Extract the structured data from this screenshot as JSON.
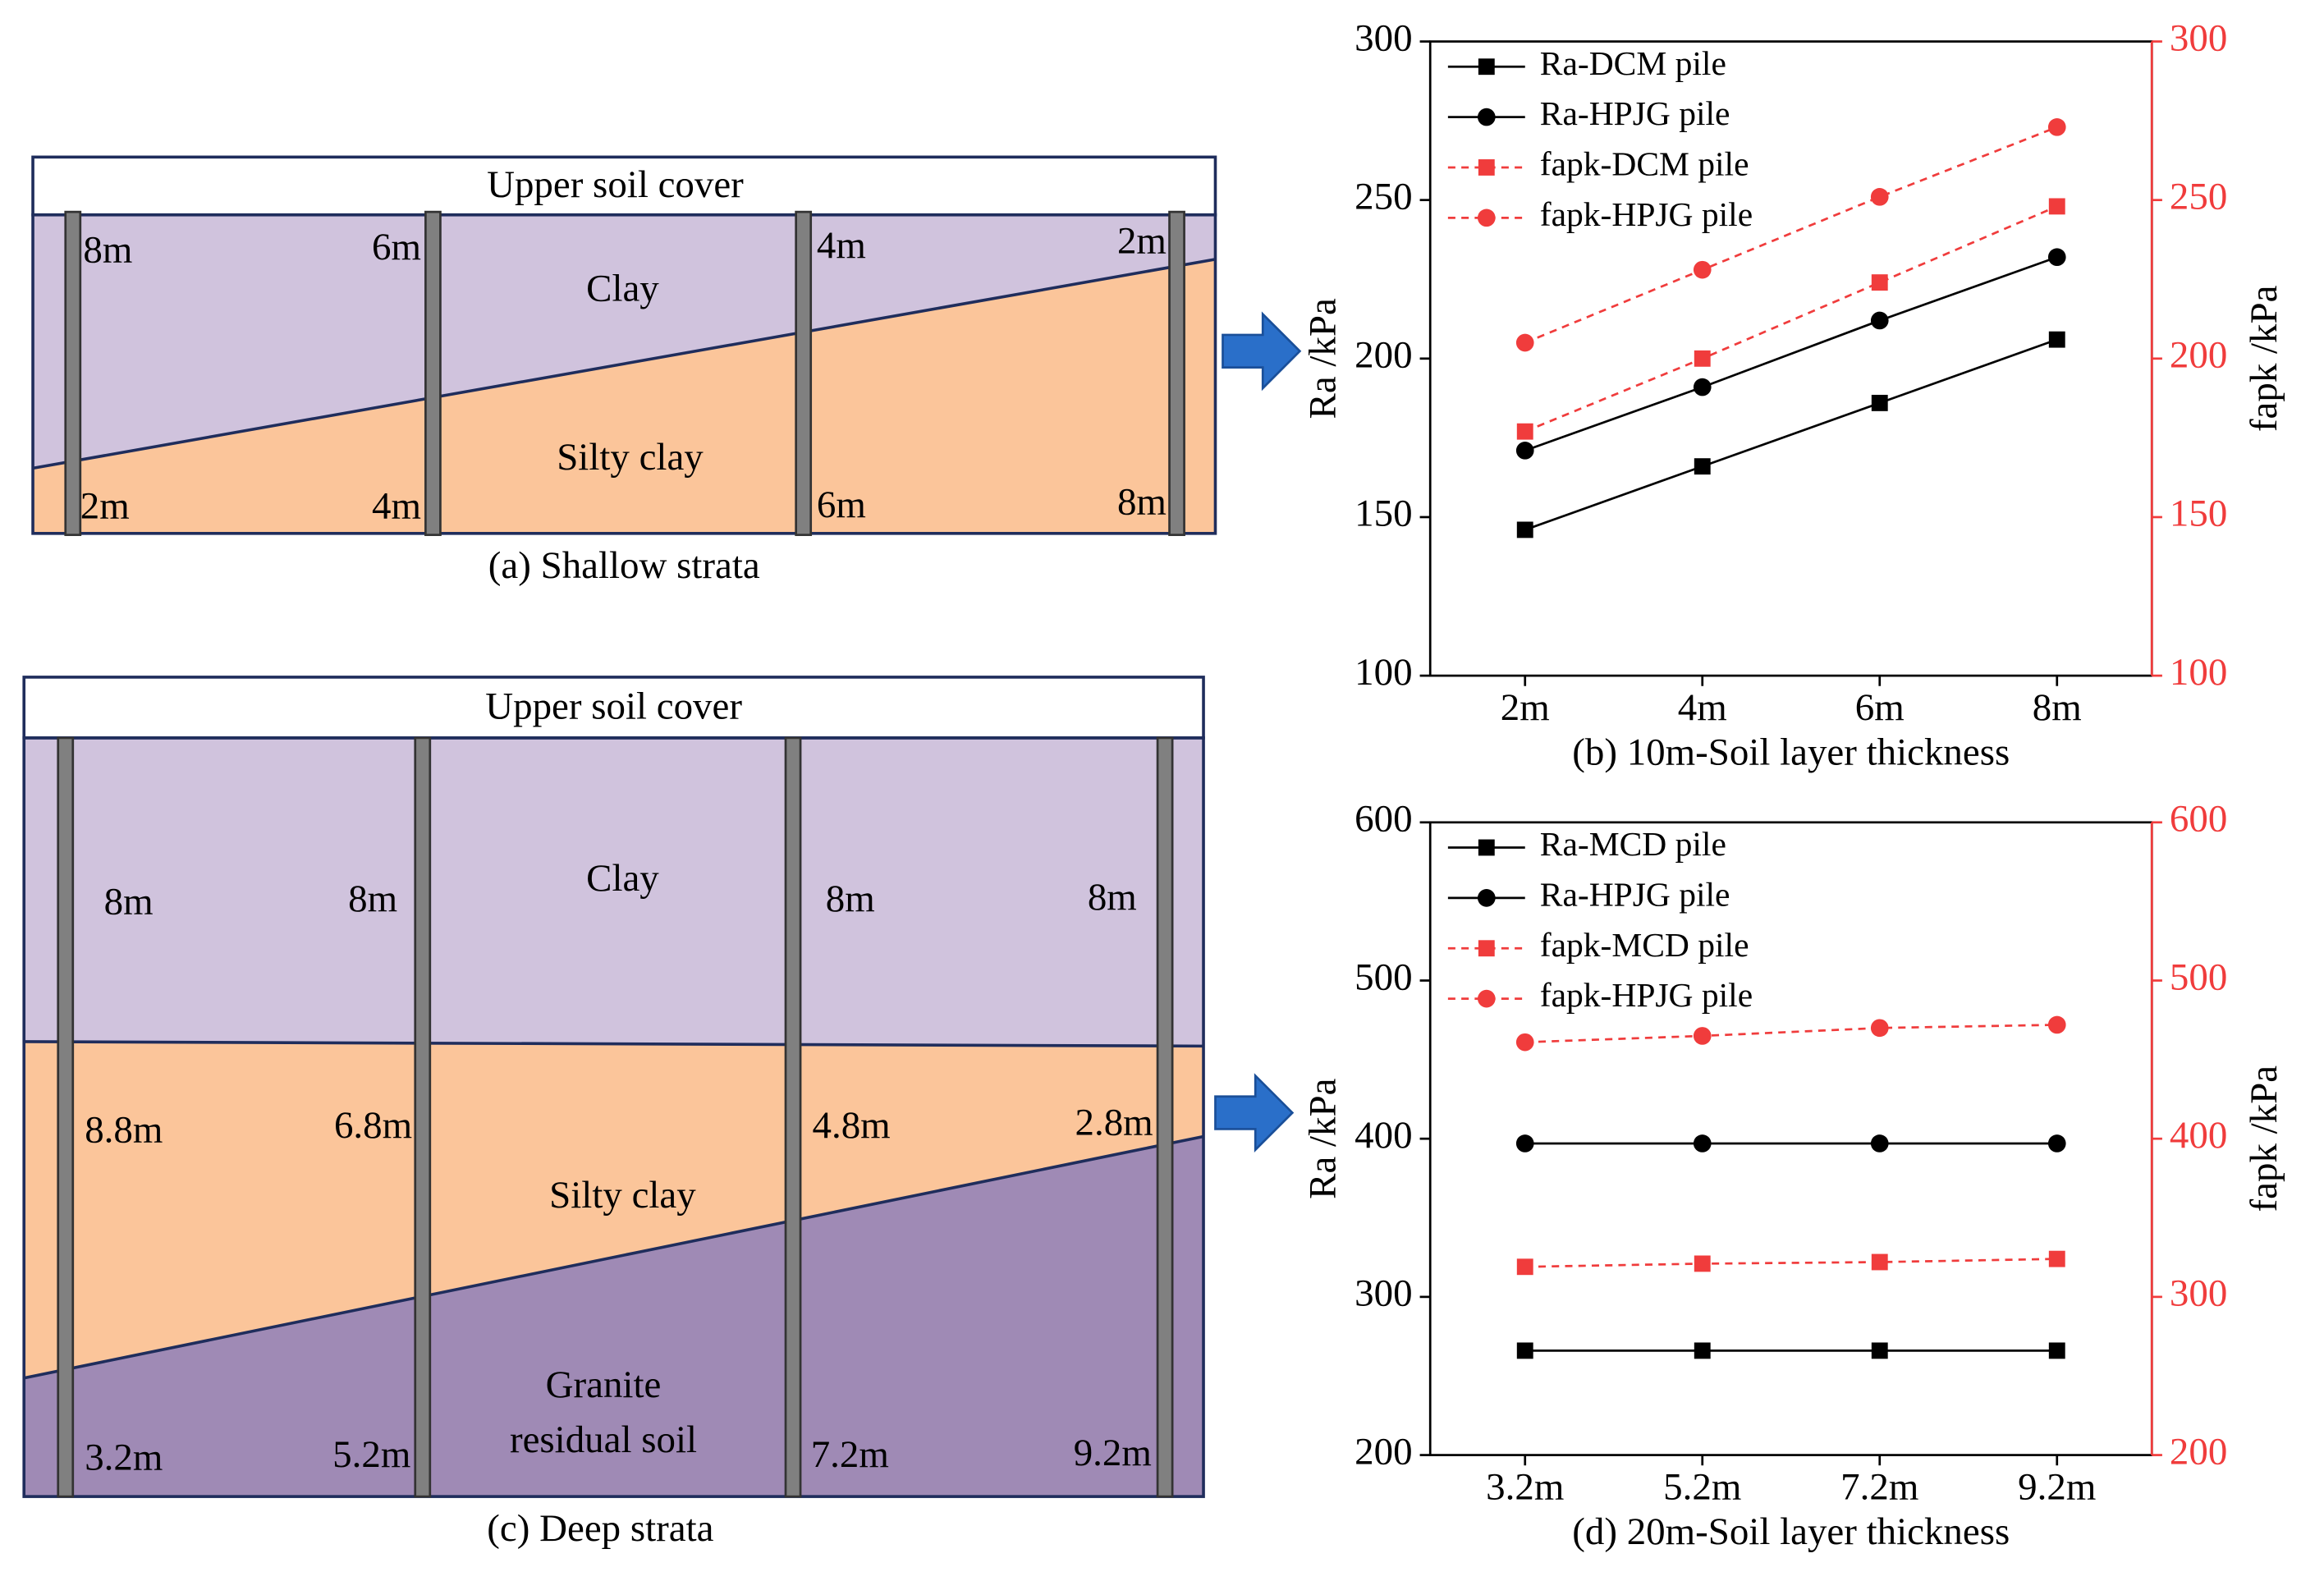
{
  "diagrams": [
    {
      "caption": "(a) Shallow strata",
      "cover": "Upper soil cover",
      "layers": [
        "Clay",
        "Silty clay"
      ],
      "top_labels": [
        "8m",
        "6m",
        "4m",
        "2m"
      ],
      "bottom_labels": [
        "2m",
        "4m",
        "6m",
        "8m"
      ]
    },
    {
      "caption": "(c) Deep strata",
      "cover": "Upper soil cover",
      "layers": [
        "Clay",
        "Silty clay",
        "Granite",
        "residual soil"
      ],
      "top_labels": [
        "8m",
        "8m",
        "8m",
        "8m"
      ],
      "middle_labels": [
        "8.8m",
        "6.8m",
        "4.8m",
        "2.8m"
      ],
      "bottom_labels": [
        "3.2m",
        "5.2m",
        "7.2m",
        "9.2m"
      ]
    }
  ],
  "chart_data": [
    {
      "type": "line",
      "title": "(b) 10m-Soil layer thickness",
      "ylabel": "Ra /kPa",
      "y2label": "fapk /kPa",
      "categories": [
        "2m",
        "4m",
        "6m",
        "8m"
      ],
      "ylim": [
        100,
        300
      ],
      "yticks": [
        100,
        150,
        200,
        250,
        300
      ],
      "y2lim": [
        100,
        300
      ],
      "y2ticks": [
        100,
        150,
        200,
        250,
        300
      ],
      "y2color": "#f03c3c",
      "legend": "upper left",
      "series": [
        {
          "name": "Ra-DCM pile",
          "color": "#000000",
          "marker": "square",
          "linestyle": "solid",
          "values": [
            146,
            166,
            186,
            206
          ]
        },
        {
          "name": "Ra-HPJG pile",
          "color": "#000000",
          "marker": "circle",
          "linestyle": "solid",
          "values": [
            171,
            191,
            212,
            232
          ]
        },
        {
          "name": "fapk-DCM pile",
          "color": "#f03c3c",
          "marker": "square",
          "linestyle": "dashed",
          "axis": "y2",
          "values": [
            177,
            200,
            224,
            248
          ]
        },
        {
          "name": "fapk-HPJG pile",
          "color": "#f03c3c",
          "marker": "circle",
          "linestyle": "dashed",
          "axis": "y2",
          "values": [
            205,
            228,
            251,
            273
          ]
        }
      ]
    },
    {
      "type": "line",
      "title": "(d) 20m-Soil layer thickness",
      "ylabel": "Ra /kPa",
      "y2label": "fapk /kPa",
      "categories": [
        "3.2m",
        "5.2m",
        "7.2m",
        "9.2m"
      ],
      "ylim": [
        200,
        600
      ],
      "yticks": [
        200,
        300,
        400,
        500,
        600
      ],
      "y2lim": [
        200,
        600
      ],
      "y2ticks": [
        200,
        300,
        400,
        500,
        600
      ],
      "y2color": "#f03c3c",
      "legend": "upper left",
      "series": [
        {
          "name": "Ra-MCD pile",
          "color": "#000000",
          "marker": "square",
          "linestyle": "solid",
          "values": [
            266,
            266,
            266,
            266
          ]
        },
        {
          "name": "Ra-HPJG pile",
          "color": "#000000",
          "marker": "circle",
          "linestyle": "solid",
          "values": [
            397,
            397,
            397,
            397
          ]
        },
        {
          "name": "fapk-MCD pile",
          "color": "#f03c3c",
          "marker": "square",
          "linestyle": "dashed",
          "axis": "y2",
          "values": [
            319,
            321,
            322,
            324
          ]
        },
        {
          "name": "fapk-HPJG pile",
          "color": "#f03c3c",
          "marker": "circle",
          "linestyle": "dashed",
          "axis": "y2",
          "values": [
            461,
            465,
            470,
            472
          ]
        }
      ]
    }
  ]
}
